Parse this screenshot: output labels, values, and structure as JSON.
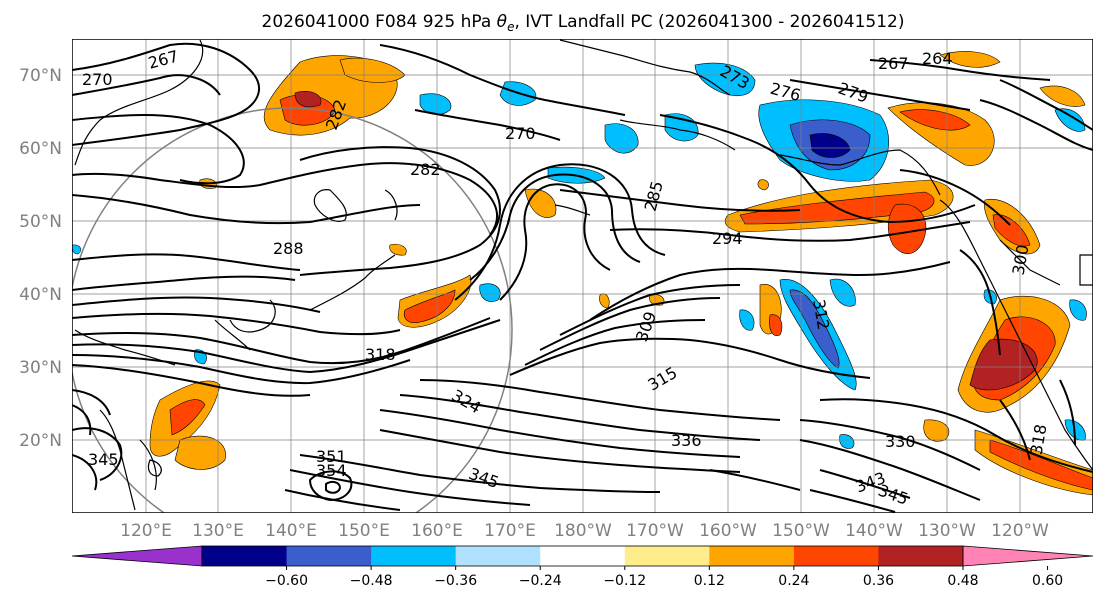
{
  "title_main": "2026041000 F084 925 hPa ",
  "title_theta": "θ",
  "title_sub": "e",
  "title_tail": ", IVT Landfall PC (2026041300 - 2026041512)",
  "lat_labels": [
    "70°N",
    "60°N",
    "50°N",
    "40°N",
    "30°N",
    "20°N"
  ],
  "lon_labels": [
    "120°E",
    "130°E",
    "140°E",
    "150°E",
    "160°E",
    "170°E",
    "180°W",
    "170°W",
    "160°W",
    "150°W",
    "140°W",
    "130°W",
    "120°W"
  ],
  "colorbar": {
    "colors": [
      "#9932cc",
      "#00008b",
      "#3a5fcd",
      "#00bfff",
      "#b0e2ff",
      "#ffffff",
      "#ffec8b",
      "#ffa500",
      "#ff4500",
      "#b22222",
      "#ff83b4"
    ],
    "under_color": "#9932cc",
    "over_color": "#ff83b4",
    "tick_labels": [
      "−0.60",
      "−0.48",
      "−0.36",
      "−0.24",
      "−0.12",
      "0.12",
      "0.24",
      "0.36",
      "0.48",
      "0.60"
    ]
  },
  "contour_labels": [
    {
      "text": "267"
    },
    {
      "text": "270"
    },
    {
      "text": "264"
    },
    {
      "text": "267"
    },
    {
      "text": "270"
    },
    {
      "text": "273"
    },
    {
      "text": "276"
    },
    {
      "text": "282"
    },
    {
      "text": "282"
    },
    {
      "text": "288"
    },
    {
      "text": "285"
    },
    {
      "text": "294"
    },
    {
      "text": "309"
    },
    {
      "text": "315"
    },
    {
      "text": "318"
    },
    {
      "text": "324"
    },
    {
      "text": "336"
    },
    {
      "text": "330"
    },
    {
      "text": "318"
    },
    {
      "text": "345"
    },
    {
      "text": "351"
    },
    {
      "text": "354"
    },
    {
      "text": "343"
    },
    {
      "text": "345"
    },
    {
      "text": "345"
    },
    {
      "text": "300"
    },
    {
      "text": "279"
    },
    {
      "text": "312"
    }
  ],
  "colors": {
    "contour": "#000000",
    "coastline": "#000000",
    "grid": "#808080",
    "tick_label": "#808080"
  }
}
